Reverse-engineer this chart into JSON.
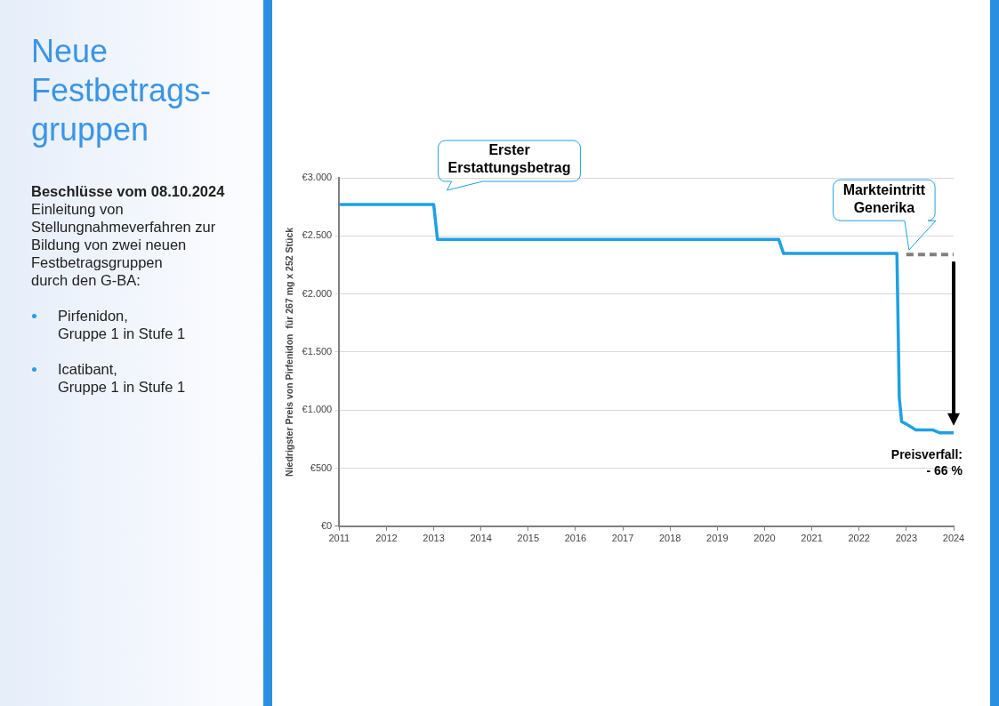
{
  "chart_data": {
    "type": "line",
    "title": "Neue\nFestbetrags-\ngruppen",
    "subtitle": "Beschlüsse vom 08.10.2024",
    "ylabel": "Niedrigster Preis von Pirfenidon  für 267 mg x 252 Stück",
    "annotations": [
      "Einleitung von\nStellungnahmeverfahren zur\nBildung von zwei neuen\nFestbetragsgruppen\ndurch den G-BA:",
      "Pirfenidon,\nGruppe 1 in Stufe 1",
      "Icatibant,\nGruppe 1 in Stufe 1",
      "Erster\nErstattungsbetrag",
      "Markteintritt\nGenerika",
      {
        "text": "Preisverfall:\n- 66 %",
        "x": 2024,
        "y": 805
      }
    ],
    "series": [
      {
        "color": "#1ea0e6",
        "x": [
          2011,
          2013.0,
          2013.08,
          2020.3,
          2020.4,
          2022.8,
          2022.85,
          2022.9,
          2023.0,
          2023.2,
          2023.55,
          2023.7,
          2024
        ],
        "values": [
          2770,
          2770,
          2470,
          2470,
          2350,
          2350,
          1110,
          900,
          880,
          830,
          830,
          805,
          805
        ]
      },
      {
        "color": "#808080",
        "line_style": "dashed",
        "x": [
          2023,
          2024
        ],
        "values": [
          2340,
          2340
        ]
      }
    ],
    "xlim": [
      2011,
      2024
    ],
    "xticks": [
      2011,
      2012,
      2013,
      2014,
      2015,
      2016,
      2017,
      2018,
      2019,
      2020,
      2021,
      2022,
      2023,
      2024
    ],
    "ylim": [
      0,
      3000
    ],
    "yticks": [
      {
        "value": 0,
        "label": "€0"
      },
      {
        "value": 500,
        "label": "€500"
      },
      {
        "value": 1000,
        "label": "€1.000"
      },
      {
        "value": 1500,
        "label": "€1.500"
      },
      {
        "value": 2000,
        "label": "€2.000"
      },
      {
        "value": 2500,
        "label": "€2.500"
      },
      {
        "value": 3000,
        "label": "€3.000"
      }
    ],
    "grid": "y",
    "legend": false,
    "marker": "none",
    "line_style": "solid"
  }
}
